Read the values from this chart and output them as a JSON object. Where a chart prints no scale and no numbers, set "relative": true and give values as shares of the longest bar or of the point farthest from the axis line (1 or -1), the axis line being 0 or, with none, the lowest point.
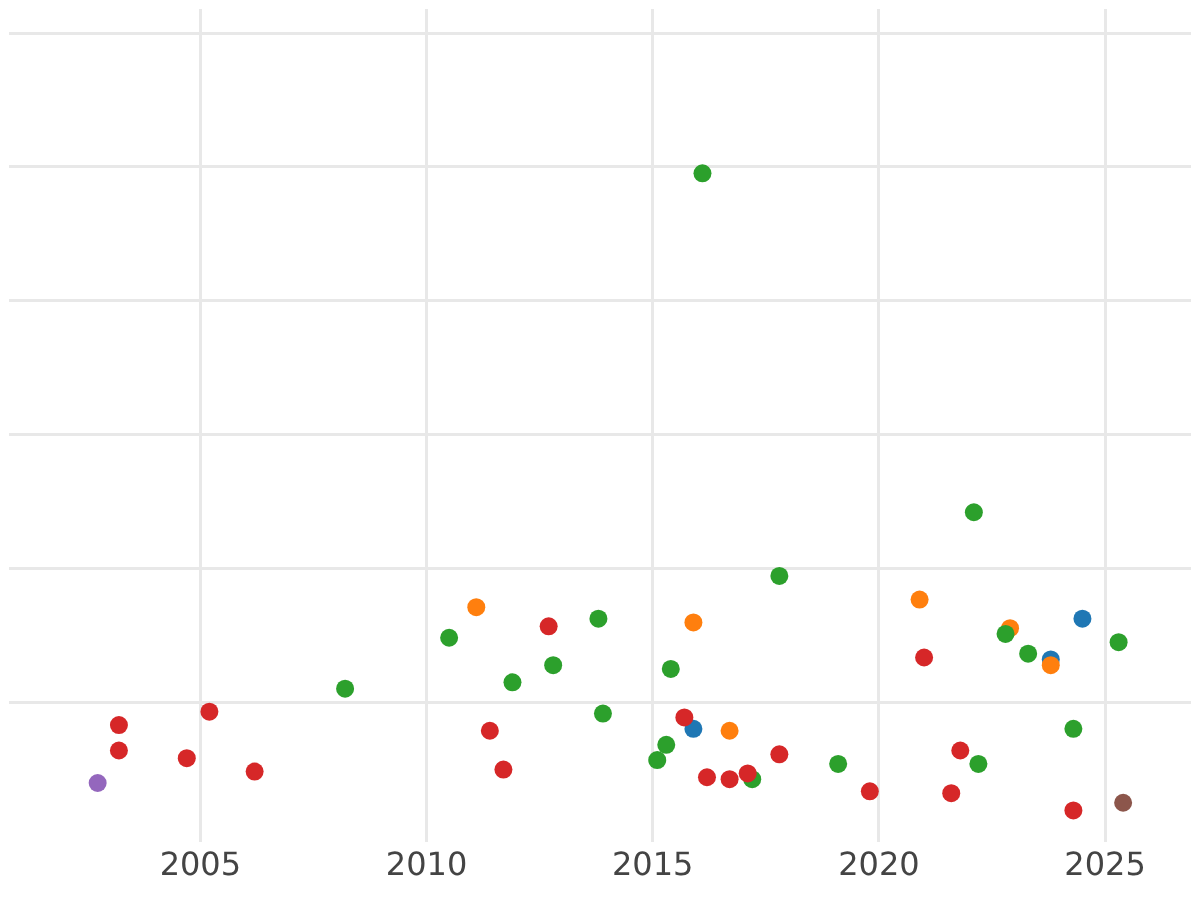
{
  "chart_data": {
    "type": "scatter",
    "relative": true,
    "marker": "circle",
    "grid": true,
    "legend": false,
    "xlim": [
      2000.77,
      2026.9
    ],
    "xticks": [
      2005,
      2010,
      2015,
      2020,
      2025
    ],
    "series": [
      {
        "color": "#9467bd",
        "x": [
          2002.73
        ],
        "values": [
          0.043
        ]
      },
      {
        "color": "#d62728",
        "x": [
          2003.2,
          2003.2,
          2004.7,
          2005.2,
          2006.2,
          2011.4,
          2011.7,
          2012.7,
          2015.7,
          2016.2,
          2016.7,
          2017.1,
          2017.8,
          2019.8,
          2021.0,
          2021.6,
          2021.8,
          2024.3
        ],
        "values": [
          0.134,
          0.094,
          0.082,
          0.155,
          0.061,
          0.125,
          0.064,
          0.289,
          0.146,
          0.052,
          0.049,
          0.058,
          0.088,
          0.03,
          0.24,
          0.027,
          0.094,
          0
        ]
      },
      {
        "color": "#2ca02c",
        "x": [
          2008.2,
          2010.5,
          2011.9,
          2012.8,
          2013.8,
          2013.9,
          2015.1,
          2015.3,
          2015.4,
          2016.1,
          2017.2,
          2017.8,
          2019.1,
          2022.1,
          2022.2,
          2022.8,
          2023.3,
          2024.3,
          2025.3
        ],
        "values": [
          0.191,
          0.271,
          0.201,
          0.228,
          0.301,
          0.152,
          0.079,
          0.103,
          0.222,
          1,
          0.049,
          0.368,
          0.073,
          0.468,
          0.073,
          0.277,
          0.246,
          0.128,
          0.264
        ]
      },
      {
        "color": "#ff7f0e",
        "x": [
          2011.1,
          2015.9,
          2016.7,
          2020.9,
          2022.9,
          2023.8
        ],
        "values": [
          0.319,
          0.295,
          0.125,
          0.331,
          0.286,
          0.228
        ]
      },
      {
        "color": "#1f77b4",
        "x": [
          2015.9,
          2023.8,
          2024.5
        ],
        "values": [
          0.128,
          0.237,
          0.301
        ]
      },
      {
        "color": "#8c564b",
        "x": [
          2025.4
        ],
        "values": [
          0.012
        ]
      }
    ]
  }
}
